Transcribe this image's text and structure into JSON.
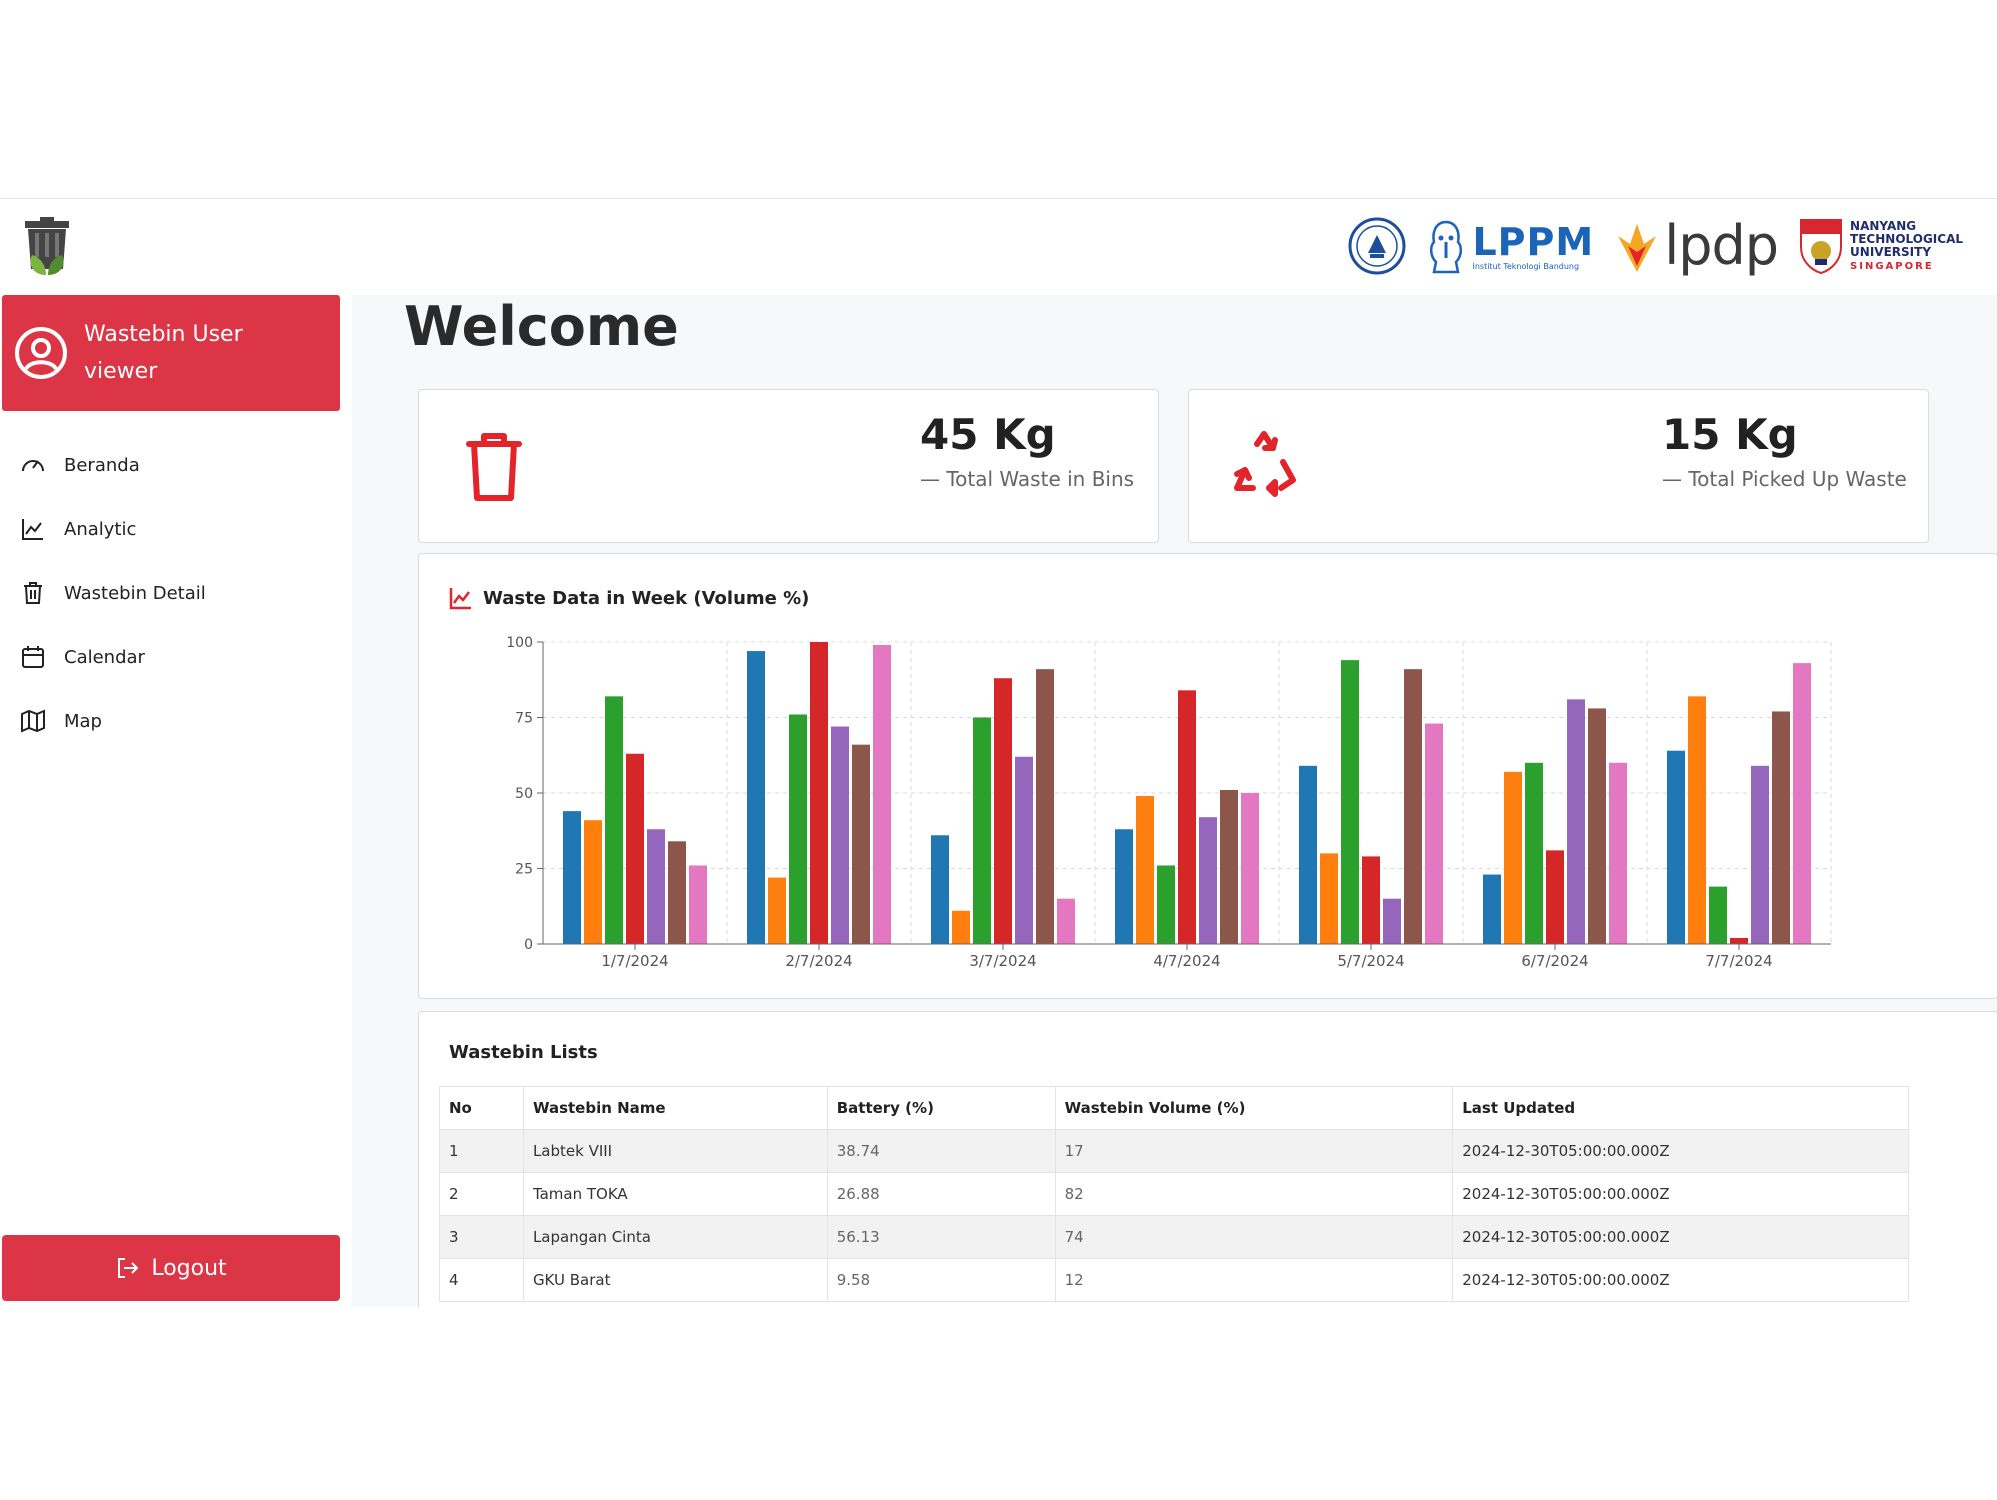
{
  "user": {
    "name_line1": "Wastebin User",
    "name_line2": "viewer"
  },
  "nav": {
    "items": [
      {
        "label": "Beranda",
        "icon": "gauge-icon"
      },
      {
        "label": "Analytic",
        "icon": "line-chart-icon"
      },
      {
        "label": "Wastebin Detail",
        "icon": "trash-icon"
      },
      {
        "label": "Calendar",
        "icon": "calendar-icon"
      },
      {
        "label": "Map",
        "icon": "map-icon"
      }
    ],
    "logout_label": "Logout"
  },
  "partners": {
    "lppm": "LPPM",
    "lppm_sub": "Institut Teknologi Bandung",
    "lpdp": "lpdp",
    "ntu_line1": "NANYANG",
    "ntu_line2": "TECHNOLOGICAL",
    "ntu_line3": "UNIVERSITY",
    "ntu_line4": "SINGAPORE"
  },
  "main": {
    "welcome": "Welcome"
  },
  "stats": [
    {
      "value": "45 Kg",
      "label": "— Total Waste in Bins",
      "icon": "trash-icon",
      "color": "#e3242b"
    },
    {
      "value": "15 Kg",
      "label": "— Total Picked Up Waste",
      "icon": "recycle-icon",
      "color": "#e3242b"
    }
  ],
  "chart_title": "Waste Data in Week (Volume %)",
  "chart_data": {
    "type": "bar",
    "categories": [
      "1/7/2024",
      "2/7/2024",
      "3/7/2024",
      "4/7/2024",
      "5/7/2024",
      "6/7/2024",
      "7/7/2024"
    ],
    "colors": [
      "#1f77b4",
      "#ff7f0e",
      "#2ca02c",
      "#d62728",
      "#9467bd",
      "#8c564b",
      "#e377c2"
    ],
    "series": [
      {
        "values": [
          44,
          97,
          36,
          38,
          59,
          23,
          64
        ]
      },
      {
        "values": [
          41,
          22,
          11,
          49,
          30,
          57,
          82
        ]
      },
      {
        "values": [
          82,
          76,
          75,
          26,
          94,
          60,
          19
        ]
      },
      {
        "values": [
          63,
          100,
          88,
          84,
          29,
          31,
          2
        ]
      },
      {
        "values": [
          38,
          72,
          62,
          42,
          15,
          81,
          59
        ]
      },
      {
        "values": [
          34,
          66,
          91,
          51,
          91,
          78,
          77
        ]
      },
      {
        "values": [
          26,
          99,
          15,
          50,
          73,
          60,
          93
        ]
      }
    ],
    "yticks": [
      0,
      25,
      50,
      75,
      100
    ],
    "ylim": [
      0,
      100
    ],
    "grid": true,
    "legend": "none"
  },
  "table": {
    "title": "Wastebin Lists",
    "headers": [
      "No",
      "Wastebin Name",
      "Battery (%)",
      "Wastebin Volume (%)",
      "Last Updated"
    ],
    "rows": [
      [
        "1",
        "Labtek VIII",
        "38.74",
        "17",
        "2024-12-30T05:00:00.000Z"
      ],
      [
        "2",
        "Taman TOKA",
        "26.88",
        "82",
        "2024-12-30T05:00:00.000Z"
      ],
      [
        "3",
        "Lapangan Cinta",
        "56.13",
        "74",
        "2024-12-30T05:00:00.000Z"
      ],
      [
        "4",
        "GKU Barat",
        "9.58",
        "12",
        "2024-12-30T05:00:00.000Z"
      ]
    ]
  }
}
